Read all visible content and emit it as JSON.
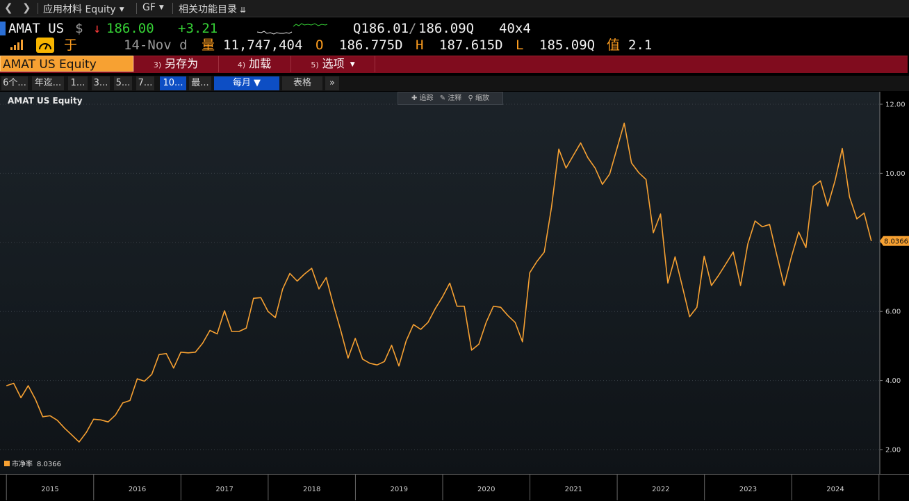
{
  "nav": {
    "security": "应用材料 Equity",
    "function": "GF",
    "related": "相关功能目录"
  },
  "quote": {
    "ticker": "AMAT US",
    "currency": "$",
    "price": "186.00",
    "change": "+3.21",
    "bid": "Q186.01",
    "ask": "186.09Q",
    "size": "40x4",
    "trade_label": "于",
    "date": "14-Nov d",
    "volume_label": "量",
    "volume": "11,747,404",
    "open_label": "O",
    "open": "186.775D",
    "high_label": "H",
    "high": "187.615D",
    "low_label": "L",
    "low": "185.09Q",
    "value_label": "值",
    "value": "2.1"
  },
  "toolbar": {
    "security_box": "AMAT US Equity",
    "buttons": [
      {
        "num": "3)",
        "label": "另存为"
      },
      {
        "num": "4)",
        "label": "加载"
      },
      {
        "num": "5)",
        "label": "选项"
      }
    ]
  },
  "ranges": {
    "items": [
      "6个...",
      "年迄...",
      "1...",
      "3...",
      "5...",
      "7...",
      "10...",
      "最..."
    ],
    "selected": "10...",
    "period": "每月 ▼",
    "table": "表格",
    "more": "»"
  },
  "chart_tools": {
    "track": "追踪",
    "annotate": "注释",
    "zoom": "缩放"
  },
  "chart_data": {
    "type": "line",
    "title": "AMAT US Equity",
    "series": [
      {
        "name": "市净率",
        "color": "#f7a132",
        "last_value": "8.0366",
        "x_start": 2014.5,
        "x_step": 0.0833,
        "values": [
          3.85,
          3.92,
          3.5,
          3.85,
          3.45,
          2.95,
          2.98,
          2.85,
          2.62,
          2.42,
          2.22,
          2.5,
          2.88,
          2.86,
          2.8,
          3.0,
          3.35,
          3.42,
          4.05,
          3.98,
          4.18,
          4.75,
          4.78,
          4.36,
          4.82,
          4.8,
          4.82,
          5.08,
          5.45,
          5.35,
          6.02,
          5.42,
          5.42,
          5.52,
          6.38,
          6.4,
          6.0,
          5.82,
          6.65,
          7.1,
          6.88,
          7.08,
          7.25,
          6.65,
          6.98,
          6.18,
          5.45,
          4.65,
          5.22,
          4.62,
          4.5,
          4.45,
          4.55,
          5.02,
          4.42,
          5.15,
          5.62,
          5.48,
          5.68,
          6.08,
          6.42,
          6.82,
          6.15,
          6.15,
          4.88,
          5.05,
          5.68,
          6.15,
          6.12,
          5.88,
          5.68,
          5.12,
          7.12,
          7.45,
          7.72,
          9.02,
          10.7,
          10.15,
          10.52,
          10.88,
          10.45,
          10.15,
          9.68,
          9.98,
          10.72,
          11.45,
          10.3,
          10.02,
          9.82,
          8.28,
          8.82,
          6.82,
          7.58,
          6.72,
          5.85,
          6.12,
          7.6,
          6.75,
          7.05,
          7.38,
          7.72,
          6.75,
          7.95,
          8.62,
          8.45,
          8.52,
          7.62,
          6.75,
          7.58,
          8.3,
          7.85,
          9.62,
          9.78,
          9.05,
          9.78,
          10.72,
          9.32,
          8.68,
          8.85,
          8.04
        ]
      }
    ],
    "x_ticks": [
      "2015",
      "2016",
      "2017",
      "2018",
      "2019",
      "2020",
      "2021",
      "2022",
      "2023",
      "2024"
    ],
    "y_ticks": [
      "2.00",
      "4.00",
      "6.00",
      "8.00",
      "10.00",
      "12.00"
    ],
    "ylim": [
      2,
      12
    ],
    "grid": true,
    "legend": "bottom-left"
  }
}
